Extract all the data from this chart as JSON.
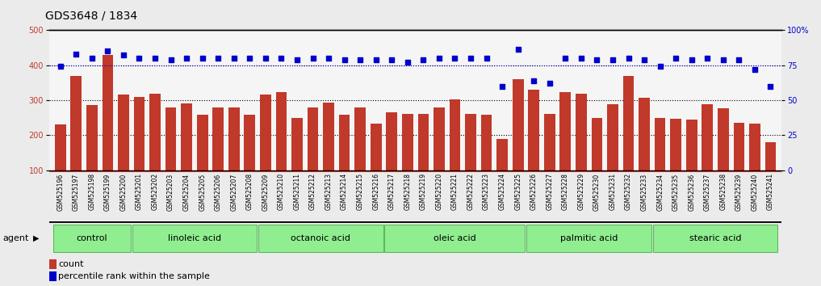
{
  "title": "GDS3648 / 1834",
  "categories": [
    "GSM525196",
    "GSM525197",
    "GSM525198",
    "GSM525199",
    "GSM525200",
    "GSM525201",
    "GSM525202",
    "GSM525203",
    "GSM525204",
    "GSM525205",
    "GSM525206",
    "GSM525207",
    "GSM525208",
    "GSM525209",
    "GSM525210",
    "GSM525211",
    "GSM525212",
    "GSM525213",
    "GSM525214",
    "GSM525215",
    "GSM525216",
    "GSM525217",
    "GSM525218",
    "GSM525219",
    "GSM525220",
    "GSM525221",
    "GSM525222",
    "GSM525223",
    "GSM525224",
    "GSM525225",
    "GSM525226",
    "GSM525227",
    "GSM525228",
    "GSM525229",
    "GSM525230",
    "GSM525231",
    "GSM525232",
    "GSM525233",
    "GSM525234",
    "GSM525235",
    "GSM525236",
    "GSM525237",
    "GSM525238",
    "GSM525239",
    "GSM525240",
    "GSM525241"
  ],
  "bar_values": [
    230,
    370,
    285,
    430,
    315,
    310,
    318,
    280,
    290,
    258,
    280,
    280,
    258,
    315,
    323,
    248,
    278,
    293,
    258,
    278,
    232,
    265,
    260,
    260,
    278,
    302,
    260,
    258,
    190,
    360,
    330,
    260,
    323,
    318,
    248,
    288,
    370,
    307,
    248,
    246,
    245,
    288,
    277,
    235,
    233,
    180
  ],
  "percentile_values": [
    74,
    83,
    80,
    85,
    82,
    80,
    80,
    79,
    80,
    80,
    80,
    80,
    80,
    80,
    80,
    79,
    80,
    80,
    79,
    79,
    79,
    79,
    77,
    79,
    80,
    80,
    80,
    80,
    60,
    86,
    64,
    62,
    80,
    80,
    79,
    79,
    80,
    79,
    74,
    80,
    79,
    80,
    79,
    79,
    72,
    60
  ],
  "groups": [
    {
      "label": "control",
      "start": 0,
      "end": 5
    },
    {
      "label": "linoleic acid",
      "start": 5,
      "end": 13
    },
    {
      "label": "octanoic acid",
      "start": 13,
      "end": 21
    },
    {
      "label": "oleic acid",
      "start": 21,
      "end": 30
    },
    {
      "label": "palmitic acid",
      "start": 30,
      "end": 38
    },
    {
      "label": "stearic acid",
      "start": 38,
      "end": 46
    }
  ],
  "bar_color": "#C0392B",
  "dot_color": "#0000CC",
  "group_fill_color": "#90EE90",
  "group_edge_color": "#5CB85C",
  "bg_color": "#EBEBEB",
  "plot_bg_color": "#F5F5F5",
  "xtick_bg_color": "#C8C8C8",
  "ylim_left": [
    100,
    500
  ],
  "ylim_right": [
    0,
    100
  ],
  "yticks_left": [
    100,
    200,
    300,
    400,
    500
  ],
  "yticks_right": [
    0,
    25,
    50,
    75,
    100
  ],
  "ytick_labels_right": [
    "0",
    "25",
    "50",
    "75",
    "100%"
  ],
  "hlines": [
    200,
    300,
    400
  ],
  "title_fontsize": 10,
  "tick_fontsize": 7,
  "xtick_fontsize": 5.5,
  "group_label_fontsize": 8,
  "legend_fontsize": 8,
  "agent_fontsize": 8
}
